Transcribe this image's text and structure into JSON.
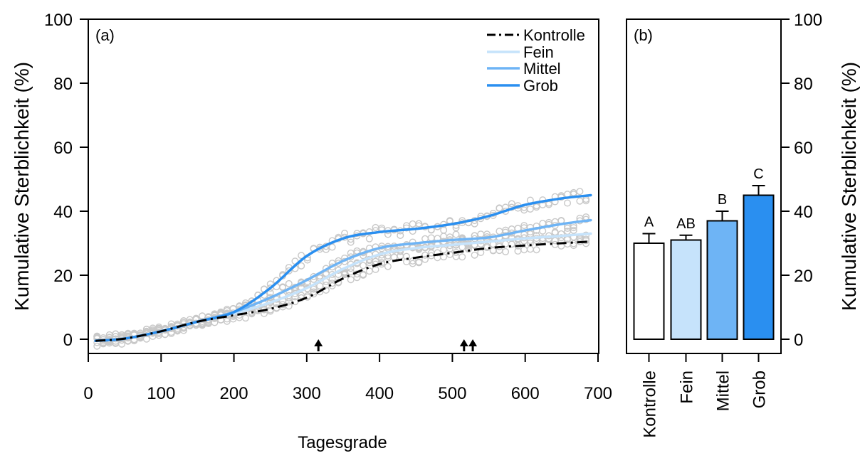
{
  "colors": {
    "kontrolle": "#000000",
    "fein": "#c6e3fb",
    "mittel": "#6eb4f5",
    "grob": "#2a8ff0",
    "points": "#c8c8c8"
  },
  "chart_data": [
    {
      "type": "line",
      "panel_label": "(a)",
      "xlabel": "Tagesgrade",
      "ylabel": "Kumulative Sterblichkeit (%)",
      "xlim": [
        0,
        700
      ],
      "ylim": [
        -5,
        100
      ],
      "xticks": [
        "0",
        "100",
        "200",
        "300",
        "400",
        "500",
        "600",
        "700"
      ],
      "yticks": [
        "0",
        "20",
        "40",
        "60",
        "80",
        "100"
      ],
      "legend_position": "top-right",
      "grid": false,
      "series": [
        {
          "name": "Kontrolle",
          "line_style": "dashdot",
          "color": "#000000",
          "x": [
            10,
            50,
            100,
            150,
            200,
            250,
            300,
            350,
            400,
            450,
            500,
            550,
            600,
            650,
            690
          ],
          "y": [
            -0.5,
            0.2,
            2.5,
            5.5,
            7.5,
            9.5,
            13.0,
            19.0,
            23.5,
            25.5,
            27.0,
            28.5,
            29.3,
            30.0,
            30.5
          ]
        },
        {
          "name": "Fein",
          "line_style": "solid",
          "color": "#c6e3fb",
          "x": [
            10,
            50,
            100,
            150,
            200,
            250,
            300,
            350,
            400,
            450,
            500,
            550,
            600,
            650,
            690
          ],
          "y": [
            -0.5,
            0.2,
            2.5,
            5.5,
            8.0,
            11.5,
            16.0,
            22.0,
            26.5,
            28.5,
            29.5,
            30.5,
            31.5,
            32.3,
            33.0
          ]
        },
        {
          "name": "Mittel",
          "line_style": "solid",
          "color": "#6eb4f5",
          "x": [
            10,
            50,
            100,
            150,
            200,
            250,
            300,
            350,
            400,
            450,
            500,
            550,
            600,
            650,
            690
          ],
          "y": [
            -0.5,
            0.2,
            2.5,
            5.5,
            8.5,
            13.0,
            18.5,
            24.5,
            28.5,
            30.0,
            31.0,
            31.8,
            34.0,
            36.0,
            37.2
          ]
        },
        {
          "name": "Grob",
          "line_style": "solid",
          "color": "#2a8ff0",
          "x": [
            10,
            50,
            100,
            150,
            200,
            250,
            300,
            350,
            400,
            450,
            500,
            550,
            600,
            650,
            690
          ],
          "y": [
            -0.5,
            0.2,
            2.5,
            5.5,
            8.5,
            16.0,
            26.0,
            31.5,
            33.5,
            34.5,
            36.0,
            38.5,
            42.0,
            44.0,
            45.0
          ]
        }
      ],
      "event_arrows_x": [
        316,
        516,
        528
      ]
    },
    {
      "type": "bar",
      "panel_label": "(b)",
      "ylabel": "Kumulative Sterblichkeit (%)",
      "ylim": [
        -5,
        100
      ],
      "yticks": [
        "0",
        "20",
        "40",
        "60",
        "80",
        "100"
      ],
      "categories": [
        "Kontrolle",
        "Fein",
        "Mittel",
        "Grob"
      ],
      "values": [
        30,
        31,
        37,
        45
      ],
      "errors": [
        3,
        1.5,
        3,
        3
      ],
      "group_letters": [
        "A",
        "AB",
        "B",
        "C"
      ],
      "colors": [
        "#ffffff",
        "#c6e3fb",
        "#6eb4f5",
        "#2a8ff0"
      ]
    }
  ]
}
